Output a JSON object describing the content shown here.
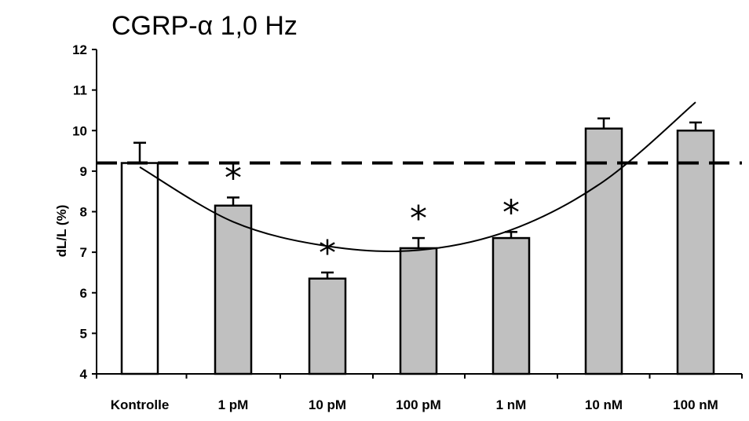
{
  "chart_data": {
    "type": "bar",
    "title": "CGRP-α 1,0 Hz",
    "ylabel": "dL/L (%)",
    "xlabel": "",
    "ylim": [
      4,
      12
    ],
    "yticks": [
      "4",
      "5",
      "6",
      "7",
      "8",
      "9",
      "10",
      "11",
      "12"
    ],
    "categories": [
      "Kontrolle",
      "1 pM",
      "10 pM",
      "100 pM",
      "1 nM",
      "10 nM",
      "100 nM"
    ],
    "values": [
      9.2,
      8.15,
      6.35,
      7.1,
      7.35,
      10.05,
      10.0
    ],
    "errors": [
      0.5,
      0.2,
      0.15,
      0.25,
      0.15,
      0.25,
      0.2
    ],
    "bar_colors": [
      "#ffffff",
      "#c0c0c0",
      "#c0c0c0",
      "#c0c0c0",
      "#c0c0c0",
      "#c0c0c0",
      "#c0c0c0"
    ],
    "significance": [
      "",
      "*",
      "*",
      "*",
      "*",
      "",
      ""
    ],
    "reference_line": {
      "y": 9.2,
      "style": "dashed"
    },
    "trend_curve": {
      "type": "polynomial",
      "points": [
        [
          0,
          9.1
        ],
        [
          1,
          7.75
        ],
        [
          2,
          7.15
        ],
        [
          3,
          7.05
        ],
        [
          4,
          7.55
        ],
        [
          5,
          8.75
        ],
        [
          6,
          10.7
        ]
      ]
    },
    "grid": false,
    "legend": "none"
  }
}
